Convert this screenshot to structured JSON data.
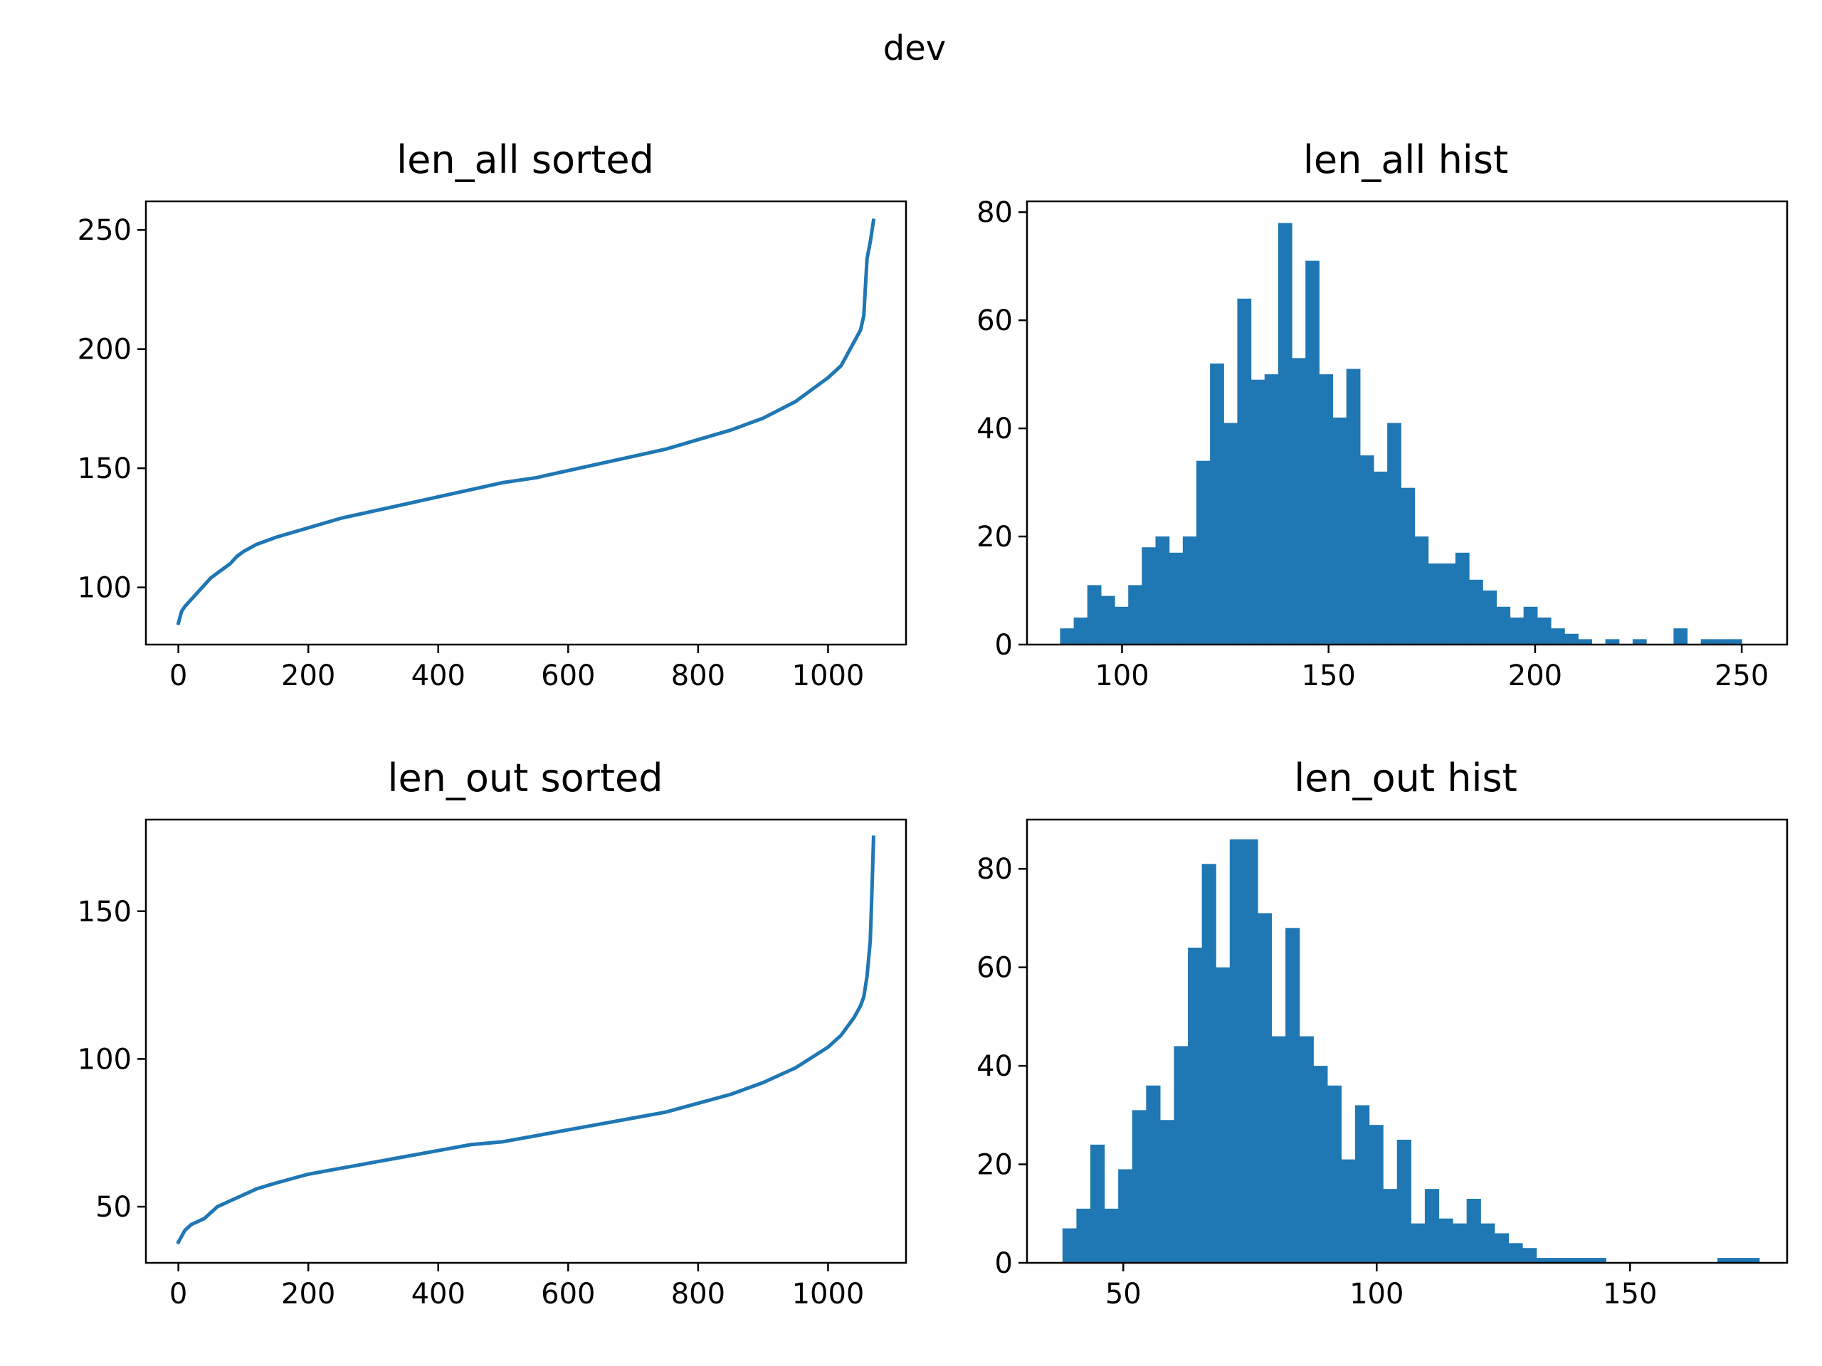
{
  "figure": {
    "suptitle": "dev",
    "accent_color": "#1f77b4"
  },
  "chart_data": [
    {
      "type": "line",
      "title": "len_all sorted",
      "xlabel": "",
      "ylabel": "",
      "xlim": [
        -50,
        1120
      ],
      "ylim": [
        76,
        262
      ],
      "xticks": [
        0,
        200,
        400,
        600,
        800,
        1000
      ],
      "yticks": [
        100,
        150,
        200,
        250
      ],
      "grid": false,
      "series": [
        {
          "x": [
            0,
            5,
            10,
            20,
            30,
            40,
            50,
            60,
            70,
            80,
            90,
            100,
            120,
            150,
            200,
            250,
            300,
            350,
            400,
            450,
            500,
            550,
            600,
            650,
            700,
            750,
            800,
            850,
            900,
            950,
            980,
            1000,
            1020,
            1040,
            1050,
            1055,
            1060,
            1065,
            1070
          ],
          "y": [
            85,
            90,
            92,
            95,
            98,
            101,
            104,
            106,
            108,
            110,
            113,
            115,
            118,
            121,
            125,
            129,
            132,
            135,
            138,
            141,
            144,
            146,
            149,
            152,
            155,
            158,
            162,
            166,
            171,
            178,
            184,
            188,
            193,
            203,
            208,
            214,
            238,
            245,
            254
          ]
        }
      ]
    },
    {
      "type": "bar",
      "title": "len_all hist",
      "xlabel": "",
      "ylabel": "",
      "xlim": [
        77,
        261
      ],
      "ylim": [
        0,
        82
      ],
      "xticks": [
        100,
        150,
        200,
        250
      ],
      "yticks": [
        0,
        20,
        40,
        60,
        80
      ],
      "grid": false,
      "bin_start": 85,
      "bin_width": 3.3,
      "values": [
        3,
        5,
        11,
        9,
        7,
        11,
        18,
        20,
        17,
        20,
        34,
        52,
        41,
        64,
        49,
        50,
        78,
        53,
        71,
        50,
        42,
        51,
        35,
        32,
        41,
        29,
        20,
        15,
        15,
        17,
        12,
        10,
        7,
        5,
        7,
        5,
        3,
        2,
        1,
        0,
        1,
        0,
        1,
        0,
        0,
        3,
        0,
        1,
        1,
        1
      ]
    },
    {
      "type": "line",
      "title": "len_out sorted",
      "xlabel": "",
      "ylabel": "",
      "xlim": [
        -50,
        1120
      ],
      "ylim": [
        31,
        181
      ],
      "xticks": [
        0,
        200,
        400,
        600,
        800,
        1000
      ],
      "yticks": [
        50,
        100,
        150
      ],
      "grid": false,
      "series": [
        {
          "x": [
            0,
            5,
            10,
            20,
            30,
            40,
            50,
            60,
            70,
            80,
            90,
            100,
            120,
            150,
            200,
            250,
            300,
            350,
            400,
            450,
            500,
            550,
            600,
            650,
            700,
            750,
            800,
            850,
            900,
            950,
            1000,
            1020,
            1040,
            1050,
            1055,
            1060,
            1065,
            1068,
            1070
          ],
          "y": [
            38,
            40,
            42,
            44,
            45,
            46,
            48,
            50,
            51,
            52,
            53,
            54,
            56,
            58,
            61,
            63,
            65,
            67,
            69,
            71,
            72,
            74,
            76,
            78,
            80,
            82,
            85,
            88,
            92,
            97,
            104,
            108,
            114,
            118,
            121,
            128,
            140,
            160,
            175
          ]
        }
      ]
    },
    {
      "type": "bar",
      "title": "len_out hist",
      "xlabel": "",
      "ylabel": "",
      "xlim": [
        31,
        181
      ],
      "ylim": [
        0,
        90
      ],
      "xticks": [
        50,
        100,
        150
      ],
      "yticks": [
        0,
        20,
        40,
        60,
        80
      ],
      "grid": false,
      "bin_start": 38,
      "bin_width": 2.75,
      "values": [
        7,
        11,
        24,
        11,
        19,
        31,
        36,
        29,
        44,
        64,
        81,
        60,
        86,
        86,
        71,
        46,
        68,
        46,
        40,
        36,
        21,
        32,
        28,
        15,
        25,
        8,
        15,
        9,
        8,
        13,
        8,
        6,
        4,
        3,
        1,
        1,
        1,
        1,
        1,
        0,
        0,
        0,
        0,
        0,
        0,
        0,
        0,
        1,
        1,
        1
      ]
    }
  ]
}
